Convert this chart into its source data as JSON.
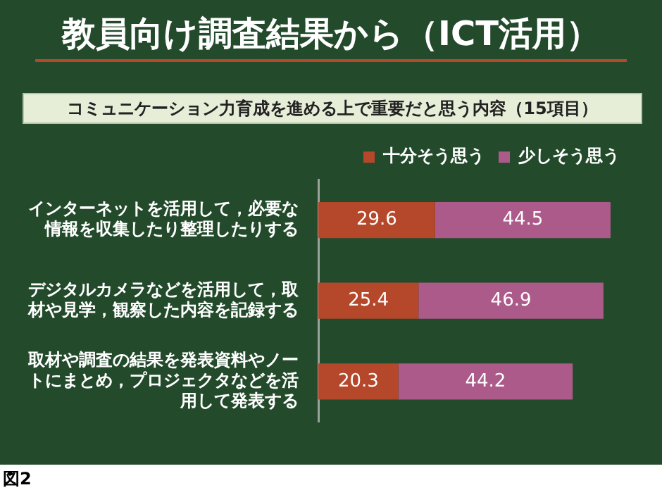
{
  "chart_data": {
    "type": "bar",
    "orientation": "horizontal",
    "stacked": true,
    "title": "教員向け調査結果から（ICT活用）",
    "subtitle": "コミュニケーション力育成を進める上で重要だと思う内容（15項目）",
    "categories": [
      "インターネットを活用して，必要な情報を収集したり整理したりする",
      "デジタルカメラなどを活用して，取材や見学，観察した内容を記録する",
      "取材や調査の結果を発表資料やノートにまとめ，プロジェクタなどを活用して発表する"
    ],
    "series": [
      {
        "name": "十分そう思う",
        "color": "#b5472b",
        "values": [
          29.6,
          25.4,
          20.3
        ]
      },
      {
        "name": "少しそう思う",
        "color": "#ab5a8a",
        "values": [
          44.5,
          46.9,
          44.2
        ]
      }
    ],
    "data_labels": true,
    "legend": "top right",
    "grid": false,
    "tick_labels": "y",
    "annotations": [
      "図2"
    ]
  }
}
